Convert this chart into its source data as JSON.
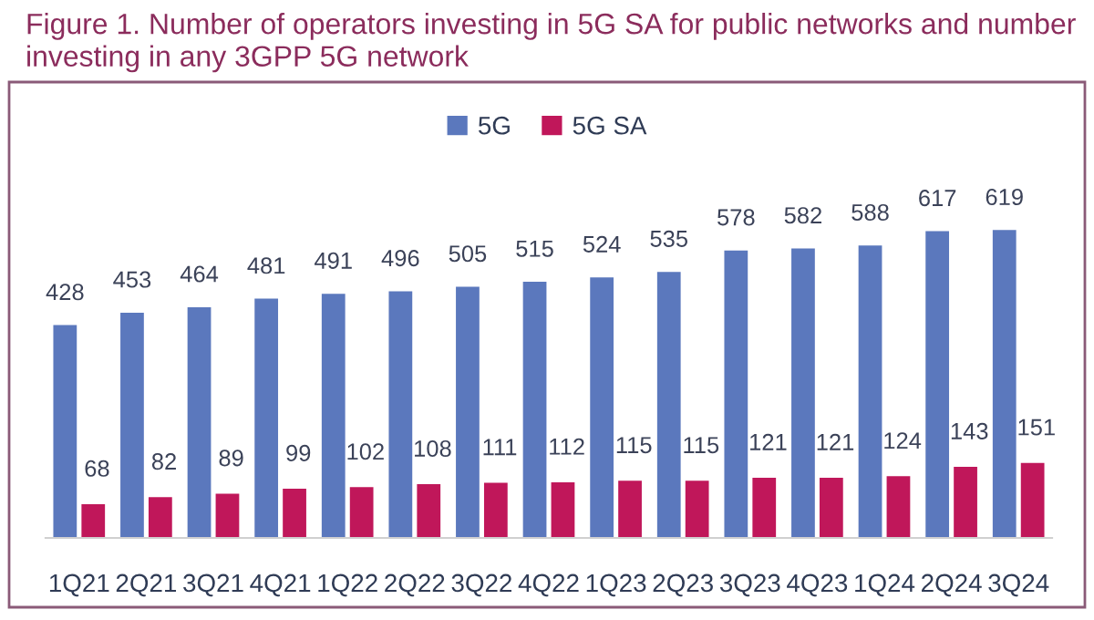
{
  "chart_data": {
    "type": "bar",
    "title": "Figure 1. Number of operators investing in 5G SA for public networks and number investing in any 3GPP 5G network",
    "categories": [
      "1Q21",
      "2Q21",
      "3Q21",
      "4Q21",
      "1Q22",
      "2Q22",
      "3Q22",
      "4Q22",
      "1Q23",
      "2Q23",
      "3Q23",
      "4Q23",
      "1Q24",
      "2Q24",
      "3Q24"
    ],
    "series": [
      {
        "name": "5G",
        "color": "#5b78bd",
        "values": [
          428,
          453,
          464,
          481,
          491,
          496,
          505,
          515,
          524,
          535,
          578,
          582,
          588,
          617,
          619
        ]
      },
      {
        "name": "5G SA",
        "color": "#c0175a",
        "values": [
          68,
          82,
          89,
          99,
          102,
          108,
          111,
          112,
          115,
          115,
          121,
          121,
          124,
          143,
          151
        ]
      }
    ],
    "data_labels": true,
    "legend": "top"
  }
}
